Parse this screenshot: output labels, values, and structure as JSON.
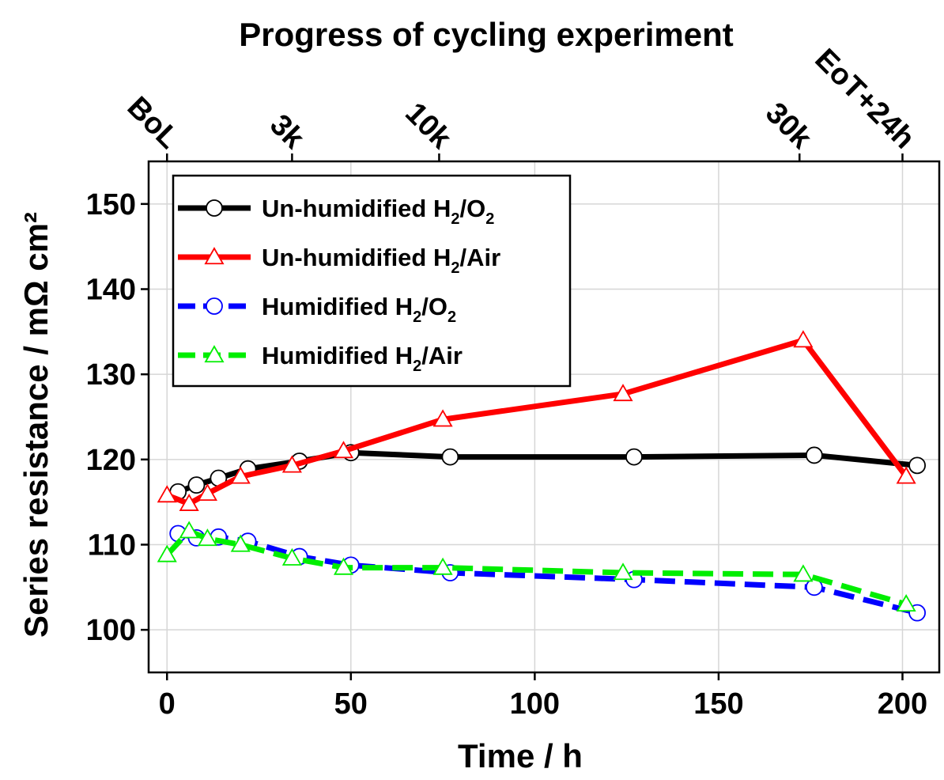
{
  "chart_data": {
    "type": "line",
    "xlabel": "Time / h",
    "ylabel": "Series resistance / mΩ cm²",
    "top_axis_title": "Progress of cycling experiment",
    "xlim": [
      -5,
      210
    ],
    "ylim": [
      95,
      155
    ],
    "x_ticks": [
      0,
      50,
      100,
      150,
      200
    ],
    "y_ticks": [
      100,
      110,
      120,
      130,
      140,
      150
    ],
    "top_ticks": [
      {
        "label": "BoL",
        "x": 0
      },
      {
        "label": "3k",
        "x": 34
      },
      {
        "label": "10k",
        "x": 74
      },
      {
        "label": "30k",
        "x": 172
      },
      {
        "label": "EoT+24h",
        "x": 200
      }
    ],
    "grid": true,
    "legend_position": "top-left",
    "series": [
      {
        "name_main": "Un-humidified H",
        "name_sub1": "2",
        "name_mid": "/O",
        "name_sub2": "2",
        "name_end": "",
        "color": "#000000",
        "marker": "circle",
        "dash": "solid",
        "marker_stroke": "#000000",
        "points": [
          [
            3,
            116.2
          ],
          [
            8,
            117.0
          ],
          [
            14,
            117.8
          ],
          [
            22,
            118.9
          ],
          [
            36,
            119.8
          ],
          [
            50,
            120.8
          ],
          [
            77,
            120.3
          ],
          [
            127,
            120.3
          ],
          [
            176,
            120.5
          ],
          [
            204,
            119.3
          ]
        ]
      },
      {
        "name_main": "Un-humidified H",
        "name_sub1": "2",
        "name_mid": "/Air",
        "name_sub2": "",
        "name_end": "",
        "color": "#ff0000",
        "marker": "triangle",
        "dash": "solid",
        "marker_stroke": "#ff0000",
        "points": [
          [
            0,
            115.8
          ],
          [
            6,
            114.8
          ],
          [
            11,
            116.0
          ],
          [
            20,
            118.0
          ],
          [
            34,
            119.3
          ],
          [
            48,
            121.0
          ],
          [
            75,
            124.7
          ],
          [
            124,
            127.7
          ],
          [
            173,
            134.0
          ],
          [
            201,
            118.0
          ]
        ]
      },
      {
        "name_main": "Humidified H",
        "name_sub1": "2",
        "name_mid": "/O",
        "name_sub2": "2",
        "name_end": "",
        "color": "#0000ff",
        "marker": "circle",
        "dash": "dashed",
        "marker_stroke": "#0000ff",
        "points": [
          [
            3,
            111.3
          ],
          [
            8,
            110.8
          ],
          [
            14,
            110.9
          ],
          [
            22,
            110.4
          ],
          [
            36,
            108.6
          ],
          [
            50,
            107.6
          ],
          [
            77,
            106.7
          ],
          [
            127,
            105.9
          ],
          [
            176,
            105.0
          ],
          [
            204,
            102.0
          ]
        ]
      },
      {
        "name_main": "Humidified H",
        "name_sub1": "2",
        "name_mid": "/Air",
        "name_sub2": "",
        "name_end": "",
        "color": "#00ee00",
        "marker": "triangle",
        "dash": "dashed",
        "marker_stroke": "#00ee00",
        "points": [
          [
            0,
            108.8
          ],
          [
            6,
            111.6
          ],
          [
            11,
            110.7
          ],
          [
            20,
            110.0
          ],
          [
            34,
            108.4
          ],
          [
            48,
            107.3
          ],
          [
            75,
            107.3
          ],
          [
            124,
            106.7
          ],
          [
            173,
            106.5
          ],
          [
            201,
            103.0
          ]
        ]
      }
    ]
  }
}
